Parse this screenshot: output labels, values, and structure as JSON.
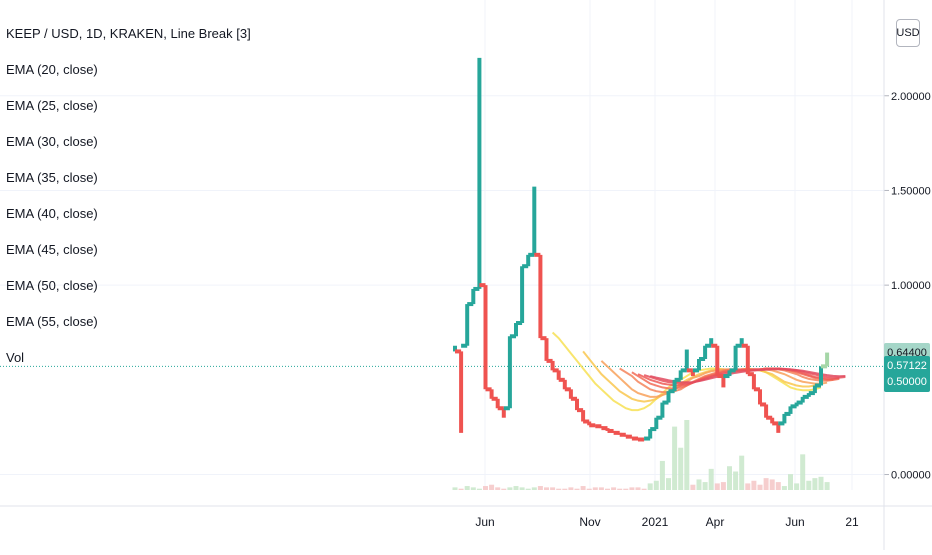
{
  "legend": {
    "title": "KEEP / USD, 1D, KRAKEN, Line Break [3]",
    "ema": [
      "EMA (20, close)",
      "EMA (25, close)",
      "EMA (30, close)",
      "EMA (35, close)",
      "EMA (40, close)",
      "EMA (45, close)",
      "EMA (50, close)",
      "EMA (55, close)"
    ],
    "vol": "Vol"
  },
  "currency_button": "USD",
  "badges": {
    "high": "0.64400",
    "last": "0.57122",
    "hidden": "0.50000"
  },
  "colors": {
    "up": "#26a69a",
    "down": "#ef5350",
    "up_light": "#a5d6a7",
    "last_line": "#26a69a",
    "grid": "#f0f3fa",
    "axis_text": "#131722"
  },
  "chart_data": {
    "type": "line",
    "style": "line-break",
    "title": "KEEP / USD, 1D, KRAKEN, Line Break [3]",
    "y_ticks": [
      {
        "value": 2.0,
        "label": "2.00000"
      },
      {
        "value": 1.5,
        "label": "1.50000"
      },
      {
        "value": 1.0,
        "label": "1.00000"
      },
      {
        "value": 0.0,
        "label": "0.00000"
      }
    ],
    "ylim": [
      -0.05,
      2.4
    ],
    "x_ticks": [
      "Jun",
      "Nov",
      "2021",
      "Apr",
      "Jun",
      "21"
    ],
    "last_price": 0.57122,
    "high_marker": 0.644,
    "lines": [
      {
        "dir": "up",
        "open": 0.65,
        "close": 0.68
      },
      {
        "dir": "down",
        "open": 0.65,
        "close": 0.22
      },
      {
        "dir": "up",
        "open": 0.68,
        "close": 0.9
      },
      {
        "dir": "up",
        "open": 0.9,
        "close": 0.98
      },
      {
        "dir": "up",
        "open": 0.98,
        "close": 2.2
      },
      {
        "dir": "down",
        "open": 1.0,
        "close": 0.45
      },
      {
        "dir": "down",
        "open": 0.45,
        "close": 0.4
      },
      {
        "dir": "down",
        "open": 0.4,
        "close": 0.35
      },
      {
        "dir": "down",
        "open": 0.35,
        "close": 0.3
      },
      {
        "dir": "up",
        "open": 0.35,
        "close": 0.73
      },
      {
        "dir": "up",
        "open": 0.73,
        "close": 0.8
      },
      {
        "dir": "up",
        "open": 0.8,
        "close": 1.1
      },
      {
        "dir": "up",
        "open": 1.1,
        "close": 1.16
      },
      {
        "dir": "up",
        "open": 1.16,
        "close": 1.52
      },
      {
        "dir": "down",
        "open": 1.16,
        "close": 0.72
      },
      {
        "dir": "down",
        "open": 0.72,
        "close": 0.6
      },
      {
        "dir": "down",
        "open": 0.6,
        "close": 0.55
      },
      {
        "dir": "down",
        "open": 0.55,
        "close": 0.5
      },
      {
        "dir": "down",
        "open": 0.5,
        "close": 0.45
      },
      {
        "dir": "down",
        "open": 0.45,
        "close": 0.4
      },
      {
        "dir": "down",
        "open": 0.4,
        "close": 0.34
      },
      {
        "dir": "down",
        "open": 0.34,
        "close": 0.28
      },
      {
        "dir": "down",
        "open": 0.28,
        "close": 0.26
      },
      {
        "dir": "down",
        "open": 0.26,
        "close": 0.255
      },
      {
        "dir": "down",
        "open": 0.255,
        "close": 0.245
      },
      {
        "dir": "down",
        "open": 0.245,
        "close": 0.23
      },
      {
        "dir": "down",
        "open": 0.23,
        "close": 0.22
      },
      {
        "dir": "down",
        "open": 0.22,
        "close": 0.21
      },
      {
        "dir": "down",
        "open": 0.21,
        "close": 0.2
      },
      {
        "dir": "down",
        "open": 0.2,
        "close": 0.19
      },
      {
        "dir": "down",
        "open": 0.19,
        "close": 0.185
      },
      {
        "dir": "down",
        "open": 0.185,
        "close": 0.18
      },
      {
        "dir": "up",
        "open": 0.19,
        "close": 0.24
      },
      {
        "dir": "up",
        "open": 0.24,
        "close": 0.3
      },
      {
        "dir": "up",
        "open": 0.3,
        "close": 0.38
      },
      {
        "dir": "up",
        "open": 0.38,
        "close": 0.44
      },
      {
        "dir": "up",
        "open": 0.44,
        "close": 0.5
      },
      {
        "dir": "up",
        "open": 0.5,
        "close": 0.55
      },
      {
        "dir": "up",
        "open": 0.55,
        "close": 0.66
      },
      {
        "dir": "down",
        "open": 0.55,
        "close": 0.52
      },
      {
        "dir": "up",
        "open": 0.55,
        "close": 0.61
      },
      {
        "dir": "up",
        "open": 0.61,
        "close": 0.68
      },
      {
        "dir": "up",
        "open": 0.68,
        "close": 0.72
      },
      {
        "dir": "down",
        "open": 0.68,
        "close": 0.52
      },
      {
        "dir": "down",
        "open": 0.52,
        "close": 0.46
      },
      {
        "dir": "up",
        "open": 0.52,
        "close": 0.55
      },
      {
        "dir": "up",
        "open": 0.55,
        "close": 0.68
      },
      {
        "dir": "up",
        "open": 0.68,
        "close": 0.72
      },
      {
        "dir": "down",
        "open": 0.68,
        "close": 0.53
      },
      {
        "dir": "down",
        "open": 0.53,
        "close": 0.45
      },
      {
        "dir": "down",
        "open": 0.45,
        "close": 0.37
      },
      {
        "dir": "down",
        "open": 0.37,
        "close": 0.3
      },
      {
        "dir": "down",
        "open": 0.3,
        "close": 0.27
      },
      {
        "dir": "down",
        "open": 0.27,
        "close": 0.22
      },
      {
        "dir": "up",
        "open": 0.27,
        "close": 0.32
      },
      {
        "dir": "up",
        "open": 0.32,
        "close": 0.36
      },
      {
        "dir": "up",
        "open": 0.36,
        "close": 0.38
      },
      {
        "dir": "up",
        "open": 0.38,
        "close": 0.41
      },
      {
        "dir": "up",
        "open": 0.41,
        "close": 0.43
      },
      {
        "dir": "up",
        "open": 0.43,
        "close": 0.47
      },
      {
        "dir": "up",
        "open": 0.47,
        "close": 0.57122
      },
      {
        "dir": "up_light",
        "open": 0.57122,
        "close": 0.644
      }
    ],
    "ema_series": [
      {
        "name": "EMA (20, close)",
        "color": "#f7e154",
        "start": 16,
        "points": [
          0.75,
          0.72,
          0.68,
          0.64,
          0.6,
          0.56,
          0.52,
          0.48,
          0.45,
          0.42,
          0.39,
          0.37,
          0.35,
          0.34,
          0.34,
          0.35,
          0.37,
          0.4,
          0.43,
          0.46,
          0.48,
          0.5,
          0.52,
          0.54,
          0.55,
          0.555,
          0.56,
          0.56,
          0.555,
          0.55,
          0.55,
          0.555,
          0.56,
          0.555,
          0.55,
          0.54,
          0.52,
          0.5,
          0.48,
          0.46,
          0.45,
          0.445,
          0.445,
          0.45,
          0.46
        ]
      },
      {
        "name": "EMA (25, close)",
        "color": "#f9c74f",
        "start": 21,
        "points": [
          0.65,
          0.61,
          0.57,
          0.53,
          0.5,
          0.47,
          0.44,
          0.42,
          0.4,
          0.39,
          0.385,
          0.39,
          0.4,
          0.42,
          0.44,
          0.46,
          0.48,
          0.5,
          0.515,
          0.53,
          0.54,
          0.55,
          0.555,
          0.555,
          0.55,
          0.55,
          0.55,
          0.555,
          0.555,
          0.55,
          0.54,
          0.53,
          0.51,
          0.49,
          0.48,
          0.47,
          0.465,
          0.465,
          0.47,
          0.475
        ]
      },
      {
        "name": "EMA (30, close)",
        "color": "#f8a15b",
        "start": 24,
        "points": [
          0.6,
          0.57,
          0.54,
          0.51,
          0.48,
          0.45,
          0.43,
          0.42,
          0.41,
          0.41,
          0.42,
          0.43,
          0.45,
          0.47,
          0.49,
          0.51,
          0.52,
          0.535,
          0.545,
          0.55,
          0.555,
          0.555,
          0.55,
          0.55,
          0.55,
          0.555,
          0.555,
          0.555,
          0.55,
          0.54,
          0.53,
          0.515,
          0.5,
          0.49,
          0.485,
          0.48,
          0.48,
          0.485
        ]
      },
      {
        "name": "EMA (35, close)",
        "color": "#f5845a",
        "start": 27,
        "points": [
          0.56,
          0.54,
          0.52,
          0.49,
          0.47,
          0.45,
          0.44,
          0.435,
          0.435,
          0.44,
          0.45,
          0.47,
          0.49,
          0.505,
          0.52,
          0.53,
          0.54,
          0.55,
          0.555,
          0.555,
          0.55,
          0.55,
          0.55,
          0.555,
          0.56,
          0.56,
          0.555,
          0.55,
          0.54,
          0.53,
          0.515,
          0.505,
          0.5,
          0.495,
          0.495,
          0.5
        ]
      },
      {
        "name": "EMA (40, close)",
        "color": "#f26c57",
        "start": 29,
        "points": [
          0.54,
          0.52,
          0.5,
          0.48,
          0.47,
          0.46,
          0.455,
          0.455,
          0.46,
          0.47,
          0.485,
          0.5,
          0.515,
          0.525,
          0.535,
          0.545,
          0.55,
          0.555,
          0.555,
          0.555,
          0.55,
          0.555,
          0.56,
          0.56,
          0.56,
          0.555,
          0.55,
          0.54,
          0.53,
          0.52,
          0.51,
          0.505,
          0.5,
          0.5,
          0.505
        ]
      },
      {
        "name": "EMA (45, close)",
        "color": "#ee5a56",
        "start": 30,
        "points": [
          0.53,
          0.515,
          0.5,
          0.49,
          0.48,
          0.475,
          0.47,
          0.47,
          0.475,
          0.485,
          0.5,
          0.51,
          0.52,
          0.53,
          0.54,
          0.545,
          0.55,
          0.555,
          0.555,
          0.555,
          0.555,
          0.56,
          0.56,
          0.56,
          0.555,
          0.55,
          0.545,
          0.535,
          0.525,
          0.515,
          0.51,
          0.505,
          0.505,
          0.51
        ]
      },
      {
        "name": "EMA (50, close)",
        "color": "#e8505b",
        "start": 31,
        "points": [
          0.525,
          0.515,
          0.505,
          0.495,
          0.488,
          0.483,
          0.48,
          0.48,
          0.485,
          0.495,
          0.505,
          0.515,
          0.525,
          0.533,
          0.54,
          0.545,
          0.55,
          0.553,
          0.555,
          0.555,
          0.556,
          0.558,
          0.56,
          0.558,
          0.555,
          0.55,
          0.543,
          0.535,
          0.528,
          0.52,
          0.515,
          0.512,
          0.512,
          0.515
        ]
      },
      {
        "name": "EMA (55, close)",
        "color": "#e04a5f",
        "start": 32,
        "points": [
          0.52,
          0.512,
          0.505,
          0.498,
          0.492,
          0.488,
          0.487,
          0.488,
          0.493,
          0.5,
          0.508,
          0.516,
          0.524,
          0.531,
          0.537,
          0.542,
          0.546,
          0.549,
          0.551,
          0.553,
          0.555,
          0.556,
          0.556,
          0.555,
          0.552,
          0.548,
          0.542,
          0.536,
          0.53,
          0.525,
          0.521,
          0.519,
          0.52
        ]
      }
    ],
    "volume": {
      "start": 0,
      "values": [
        0.2,
        0.1,
        0.3,
        0.2,
        0.1,
        0.3,
        0.4,
        0.2,
        0.1,
        0.2,
        0.3,
        0.2,
        0.1,
        0.2,
        0.3,
        0.2,
        0.2,
        0.1,
        0.1,
        0.2,
        0.1,
        0.3,
        0.1,
        0.2,
        0.2,
        0.1,
        0.2,
        0.1,
        0.1,
        0.2,
        0.2,
        0.1,
        0.5,
        0.7,
        2.2,
        0.9,
        4.8,
        3.2,
        5.3,
        0.4,
        0.8,
        0.6,
        1.6,
        0.5,
        0.6,
        1.8,
        1.4,
        2.6,
        0.5,
        0.7,
        0.4,
        0.9,
        0.8,
        0.6,
        0.3,
        1.2,
        0.5,
        2.7,
        0.7,
        0.9,
        1.0,
        0.6
      ]
    }
  }
}
